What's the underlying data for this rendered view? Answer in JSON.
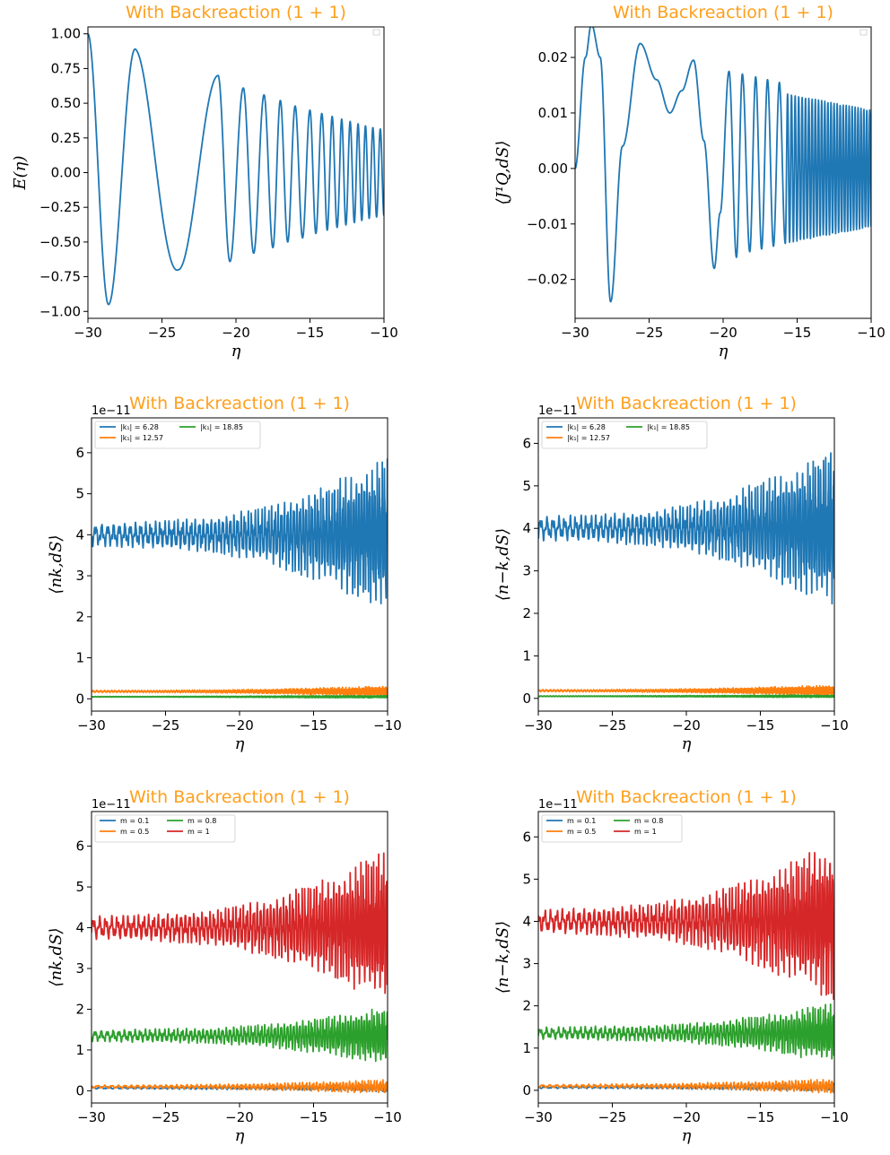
{
  "chart_data": [
    {
      "id": "E",
      "type": "line",
      "title": "With Backreaction (1 + 1)",
      "xlabel": "η",
      "ylabel": "E(η)",
      "xlim": [
        -30,
        -10
      ],
      "ylim": [
        -1.05,
        1.05
      ],
      "xticks": [
        -30,
        -25,
        -20,
        -15,
        -10
      ],
      "xtick_labels": [
        "−30",
        "−25",
        "−20",
        "−15",
        "−10"
      ],
      "yticks": [
        1.0,
        0.75,
        0.5,
        0.25,
        0.0,
        -0.25,
        -0.5,
        -0.75,
        -1.0
      ],
      "ytick_labels": [
        "1.00",
        "0.75",
        "0.50",
        "0.25",
        "0.00",
        "−0.25",
        "−0.50",
        "−0.75",
        "−1.00"
      ],
      "offset_text": "",
      "legend": "top-right (empty)",
      "grid": false,
      "series": [
        {
          "color": "#1f77b4",
          "model": "chirp",
          "x": [
            -30,
            -28.6,
            -26.8,
            -23.9,
            -21.2,
            -20.4,
            -19.5,
            -18.8,
            -18.1,
            -17.5,
            -17.0,
            -16.5,
            -16.0,
            -15.5,
            -15.0,
            -14.0,
            -13.0,
            -12.0,
            -11.0,
            -10.0
          ],
          "amplitude": [
            1.0,
            0.95,
            0.89,
            0.7,
            0.7,
            0.64,
            0.61,
            0.58,
            0.56,
            0.54,
            0.52,
            0.5,
            0.48,
            0.47,
            0.45,
            0.42,
            0.39,
            0.36,
            0.33,
            0.31
          ],
          "phase": [
            0,
            1,
            2,
            3,
            4,
            5,
            6,
            7,
            8,
            9,
            10,
            11,
            12,
            13,
            14,
            16.5,
            19.5,
            23,
            27,
            31
          ]
        }
      ]
    },
    {
      "id": "J",
      "type": "line",
      "title": "With Backreaction (1 + 1)",
      "xlabel": "η",
      "ylabel": "⟨J¹Q,dS⟩",
      "xlim": [
        -30,
        -10
      ],
      "ylim": [
        -0.027,
        0.0255
      ],
      "xticks": [
        -30,
        -25,
        -20,
        -15,
        -10
      ],
      "xtick_labels": [
        "−30",
        "−25",
        "−20",
        "−15",
        "−10"
      ],
      "yticks": [
        0.02,
        0.01,
        0.0,
        -0.01,
        -0.02
      ],
      "ytick_labels": [
        "0.02",
        "0.01",
        "0.00",
        "−0.01",
        "−0.02"
      ],
      "offset_text": "",
      "legend": "top-right (empty)",
      "grid": false,
      "series": [
        {
          "color": "#1f77b4",
          "model": "points",
          "x": [
            -30.0,
            -29.3,
            -28.9,
            -28.3,
            -27.6,
            -26.8,
            -25.6,
            -24.5,
            -23.6,
            -22.8,
            -22.0,
            -21.3,
            -20.6,
            -20.2,
            -19.6,
            -19.1,
            -18.7,
            -18.2,
            -17.8,
            -17.4,
            -17.0,
            -16.6,
            -16.2,
            -15.8
          ],
          "y": [
            0.0,
            0.02,
            0.026,
            0.02,
            -0.024,
            0.004,
            0.0225,
            0.016,
            0.01,
            0.014,
            0.0195,
            0.005,
            -0.018,
            -0.008,
            0.0175,
            -0.016,
            0.017,
            -0.015,
            0.0165,
            -0.0145,
            0.016,
            -0.014,
            0.0155,
            -0.0135
          ],
          "chirp_from": -15.8,
          "chirp_amplitude_start": 0.0135,
          "chirp_amplitude_end": 0.0105,
          "chirp_phase_span": 27
        }
      ]
    },
    {
      "id": "n_k",
      "type": "line",
      "title": "With Backreaction (1 + 1)",
      "xlabel": "η",
      "ylabel": "⟨nk,dS⟩",
      "xlim": [
        -30,
        -10
      ],
      "ylim": [
        -0.3,
        6.85
      ],
      "xticks": [
        -30,
        -25,
        -20,
        -15,
        -10
      ],
      "xtick_labels": [
        "−30",
        "−25",
        "−20",
        "−15",
        "−10"
      ],
      "yticks": [
        0,
        1,
        2,
        3,
        4,
        5,
        6
      ],
      "ytick_labels": [
        "0",
        "1",
        "2",
        "3",
        "4",
        "5",
        "6"
      ],
      "offset_text": "1e−11",
      "legend": "top-left",
      "grid": false,
      "series": [
        {
          "name": "|k₁| = 6.28",
          "color": "#1f77b4",
          "mean": 4.0,
          "osc_env": [
            0.3,
            0.35,
            0.45,
            0.75,
            1.3,
            2.0
          ],
          "phase_span": 40
        },
        {
          "name": "|k₁| = 12.57",
          "color": "#ff7f0e",
          "mean": 0.18,
          "osc_env": [
            0.03,
            0.03,
            0.04,
            0.06,
            0.1,
            0.14
          ],
          "phase_span": 65
        },
        {
          "name": "|k₁| = 18.85",
          "color": "#2ca02c",
          "mean": 0.05,
          "osc_env": [
            0.01,
            0.01,
            0.015,
            0.02,
            0.03,
            0.03
          ],
          "phase_span": 80
        }
      ]
    },
    {
      "id": "n_minus_k",
      "type": "line",
      "title": "With Backreaction (1 + 1)",
      "xlabel": "η",
      "ylabel": "⟨n−k,dS⟩",
      "xlim": [
        -30,
        -10
      ],
      "ylim": [
        -0.3,
        6.6
      ],
      "xticks": [
        -30,
        -25,
        -20,
        -15,
        -10
      ],
      "xtick_labels": [
        "−30",
        "−25",
        "−20",
        "−15",
        "−10"
      ],
      "yticks": [
        0,
        1,
        2,
        3,
        4,
        5,
        6
      ],
      "ytick_labels": [
        "0",
        "1",
        "2",
        "3",
        "4",
        "5",
        "6"
      ],
      "offset_text": "1e−11",
      "legend": "top-left",
      "grid": false,
      "series": [
        {
          "name": "|k₁| = 6.28",
          "color": "#1f77b4",
          "mean": 4.0,
          "osc_env": [
            0.3,
            0.35,
            0.45,
            0.75,
            1.3,
            2.0
          ],
          "phase_span": 40
        },
        {
          "name": "|k₁| = 12.57",
          "color": "#ff7f0e",
          "mean": 0.18,
          "osc_env": [
            0.03,
            0.03,
            0.04,
            0.06,
            0.1,
            0.14
          ],
          "phase_span": 65
        },
        {
          "name": "|k₁| = 18.85",
          "color": "#2ca02c",
          "mean": 0.05,
          "osc_env": [
            0.01,
            0.01,
            0.015,
            0.02,
            0.03,
            0.03
          ],
          "phase_span": 80
        }
      ]
    },
    {
      "id": "n_k_mass",
      "type": "line",
      "title": "With Backreaction (1 + 1)",
      "xlabel": "η",
      "ylabel": "⟨nk,dS⟩",
      "xlim": [
        -30,
        -10
      ],
      "ylim": [
        -0.3,
        6.85
      ],
      "xticks": [
        -30,
        -25,
        -20,
        -15,
        -10
      ],
      "xtick_labels": [
        "−30",
        "−25",
        "−20",
        "−15",
        "−10"
      ],
      "yticks": [
        0,
        1,
        2,
        3,
        4,
        5,
        6
      ],
      "ytick_labels": [
        "0",
        "1",
        "2",
        "3",
        "4",
        "5",
        "6"
      ],
      "offset_text": "1e−11",
      "legend": "top-left",
      "grid": false,
      "series": [
        {
          "name": "m = 0.1",
          "color": "#1f77b4",
          "mean": 0.07,
          "osc_env": [
            0.03,
            0.03,
            0.04,
            0.05,
            0.07,
            0.1
          ],
          "phase_span": 30
        },
        {
          "name": "m = 0.5",
          "color": "#ff7f0e",
          "mean": 0.1,
          "osc_env": [
            0.04,
            0.05,
            0.06,
            0.09,
            0.13,
            0.18
          ],
          "phase_span": 34
        },
        {
          "name": "m = 0.8",
          "color": "#2ca02c",
          "mean": 1.35,
          "osc_env": [
            0.15,
            0.18,
            0.2,
            0.3,
            0.5,
            0.75
          ],
          "phase_span": 40
        },
        {
          "name": "m = 1",
          "color": "#d62728",
          "mean": 4.0,
          "osc_env": [
            0.3,
            0.35,
            0.45,
            0.75,
            1.3,
            2.0
          ],
          "phase_span": 40
        }
      ]
    },
    {
      "id": "n_minus_k_mass",
      "type": "line",
      "title": "With Backreaction (1 + 1)",
      "xlabel": "η",
      "ylabel": "⟨n−k,dS⟩",
      "xlim": [
        -30,
        -10
      ],
      "ylim": [
        -0.3,
        6.6
      ],
      "xticks": [
        -30,
        -25,
        -20,
        -15,
        -10
      ],
      "xtick_labels": [
        "−30",
        "−25",
        "−20",
        "−15",
        "−10"
      ],
      "yticks": [
        0,
        1,
        2,
        3,
        4,
        5,
        6
      ],
      "ytick_labels": [
        "0",
        "1",
        "2",
        "3",
        "4",
        "5",
        "6"
      ],
      "offset_text": "1e−11",
      "legend": "top-left",
      "grid": false,
      "series": [
        {
          "name": "m = 0.1",
          "color": "#1f77b4",
          "mean": 0.07,
          "osc_env": [
            0.03,
            0.03,
            0.04,
            0.05,
            0.07,
            0.1
          ],
          "phase_span": 30
        },
        {
          "name": "m = 0.5",
          "color": "#ff7f0e",
          "mean": 0.1,
          "osc_env": [
            0.04,
            0.05,
            0.06,
            0.09,
            0.13,
            0.18
          ],
          "phase_span": 34
        },
        {
          "name": "m = 0.8",
          "color": "#2ca02c",
          "mean": 1.35,
          "osc_env": [
            0.15,
            0.18,
            0.2,
            0.3,
            0.5,
            0.75
          ],
          "phase_span": 40
        },
        {
          "name": "m = 1",
          "color": "#d62728",
          "mean": 4.0,
          "osc_env": [
            0.3,
            0.35,
            0.45,
            0.75,
            1.3,
            2.0
          ],
          "phase_span": 40
        }
      ]
    }
  ]
}
